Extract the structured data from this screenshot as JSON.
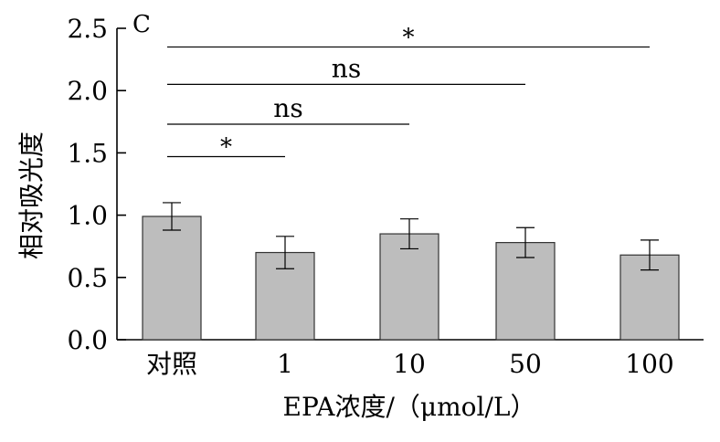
{
  "chart_data": {
    "type": "bar",
    "panel_label": "C",
    "categories": [
      "对照",
      "1",
      "10",
      "50",
      "100"
    ],
    "values": [
      0.99,
      0.7,
      0.85,
      0.78,
      0.68
    ],
    "errors": [
      0.11,
      0.13,
      0.12,
      0.12,
      0.12
    ],
    "xlabel": "EPA浓度/（μmol/L）",
    "ylabel": "相对吸光度",
    "ylim": [
      0,
      2.5
    ],
    "yticks": [
      "0.0",
      "0.5",
      "1.0",
      "1.5",
      "2.0",
      "2.5"
    ],
    "significance": [
      {
        "from": "对照",
        "to": "1",
        "label": "*",
        "y": 1.47
      },
      {
        "from": "对照",
        "to": "10",
        "label": "ns",
        "y": 1.73
      },
      {
        "from": "对照",
        "to": "50",
        "label": "ns",
        "y": 2.05
      },
      {
        "from": "对照",
        "to": "100",
        "label": "*",
        "y": 2.35
      }
    ],
    "colors": {
      "bar_fill": "#bdbdbd",
      "bar_stroke": "#333333",
      "axis": "#000000"
    },
    "grid": false
  }
}
